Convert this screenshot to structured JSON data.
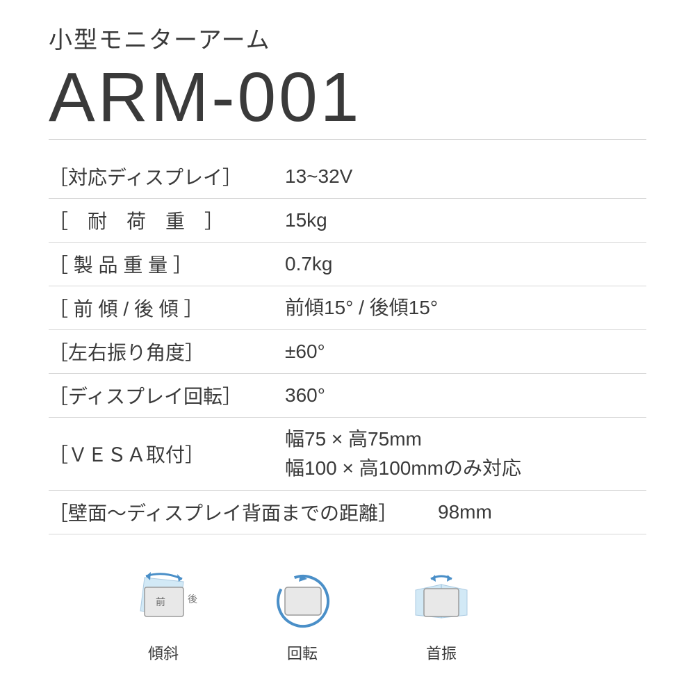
{
  "subtitle": "小型モニターアーム",
  "model": "ARM-001",
  "specs": [
    {
      "label": "［対応ディスプレイ］",
      "value": "13~32V"
    },
    {
      "label": "［　耐　荷　重　］",
      "value": "15kg"
    },
    {
      "label": "［ 製 品 重 量 ］",
      "value": "0.7kg"
    },
    {
      "label": "［ 前 傾 / 後 傾 ］",
      "value": "前傾15° / 後傾15°"
    },
    {
      "label": "［左右振り角度］",
      "value": "±60°"
    },
    {
      "label": "［ディスプレイ回転］",
      "value": "360°"
    },
    {
      "label": "［ＶＥＳＡ取付］",
      "value": "幅75 × 高75mm\n幅100 × 高100mmのみ対応"
    },
    {
      "label": "［壁面～ディスプレイ背面までの距離］",
      "value": "98mm",
      "wide": true
    }
  ],
  "icons": [
    {
      "name": "tilt",
      "label": "傾斜",
      "front": "前",
      "back": "後"
    },
    {
      "name": "rotate",
      "label": "回転"
    },
    {
      "name": "swivel",
      "label": "首振"
    }
  ],
  "colors": {
    "text": "#3a3a3a",
    "divider": "#d5d5d5",
    "iconBlue": "#6bb6e8",
    "iconFill": "#e8e8e8",
    "iconStroke": "#9a9a9a",
    "arrowBlue": "#4a8fc8"
  }
}
